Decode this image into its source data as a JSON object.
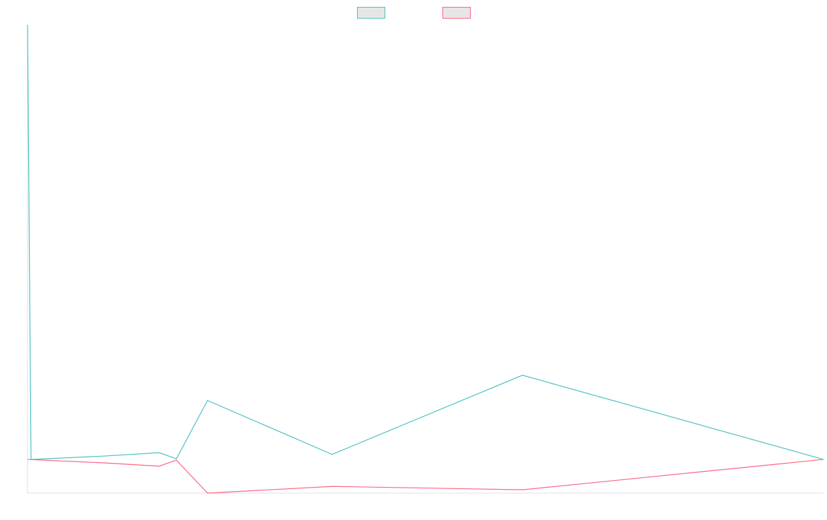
{
  "chart_data": {
    "type": "line",
    "title": "",
    "xlabel": "",
    "ylabel": "",
    "x_count": 231,
    "ylim": [
      -1.0,
      12.9
    ],
    "grid": false,
    "legend_position": "top-center",
    "colors": {
      "series_1": "#4bc0c0",
      "series_2": "#ff6384",
      "legend_fill": "#e6e6e6",
      "axis": "#e0e0e0"
    },
    "series": [
      {
        "key": "series_1",
        "points": [
          [
            0,
            12.9
          ],
          [
            1,
            0.0
          ],
          [
            22,
            0.1
          ],
          [
            38,
            0.2
          ],
          [
            43,
            0.02
          ],
          [
            52,
            1.75
          ],
          [
            88,
            0.15
          ],
          [
            143,
            2.5
          ],
          [
            230,
            0.0
          ]
        ]
      },
      {
        "key": "series_2",
        "points": [
          [
            0,
            0.0
          ],
          [
            22,
            -0.1
          ],
          [
            38,
            -0.2
          ],
          [
            43,
            -0.02
          ],
          [
            52,
            -1.0
          ],
          [
            88,
            -0.8
          ],
          [
            143,
            -0.9
          ],
          [
            230,
            0.0
          ]
        ]
      }
    ]
  }
}
